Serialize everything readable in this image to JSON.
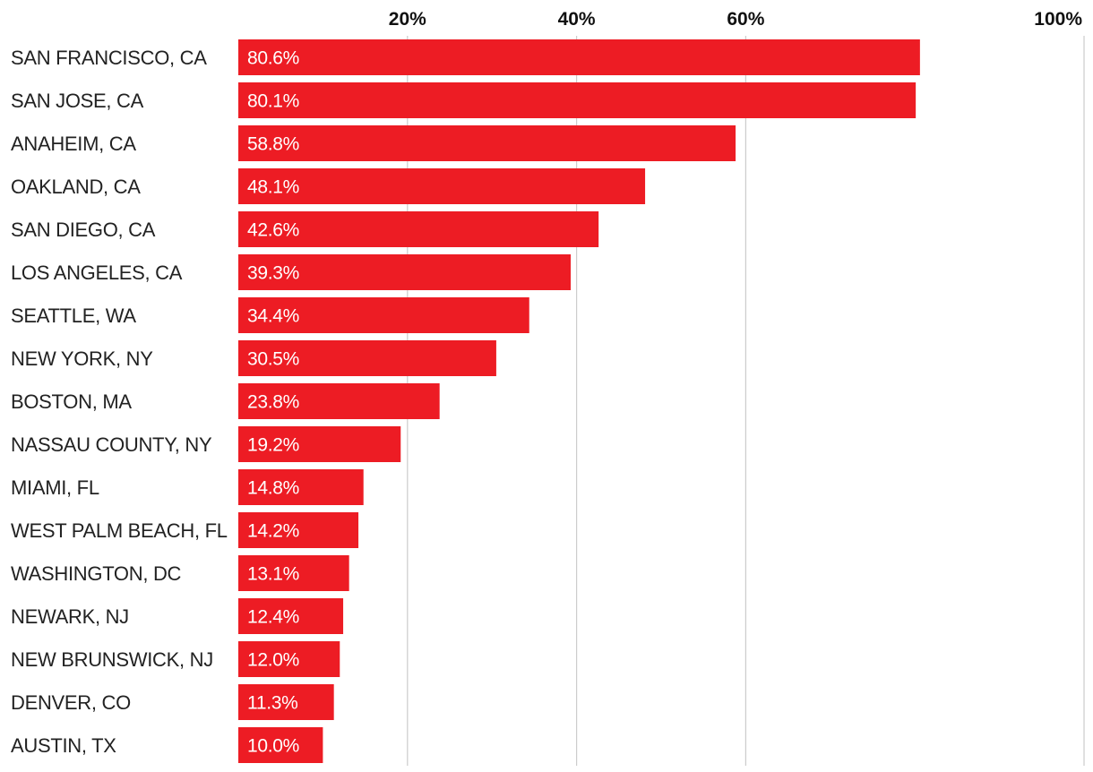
{
  "chart_data": {
    "type": "bar",
    "orientation": "horizontal",
    "title": "",
    "xlabel": "",
    "ylabel": "",
    "xlim": [
      0,
      100
    ],
    "ticks": [
      20,
      40,
      60,
      100
    ],
    "tick_labels": [
      "20%",
      "40%",
      "60%",
      "100%"
    ],
    "grid": true,
    "bar_color": "#ed1c24",
    "categories": [
      "SAN FRANCISCO, CA",
      "SAN JOSE, CA",
      "ANAHEIM, CA",
      "OAKLAND, CA",
      "SAN DIEGO, CA",
      "LOS ANGELES, CA",
      "SEATTLE, WA",
      "NEW YORK, NY",
      "BOSTON, MA",
      "NASSAU COUNTY, NY",
      "MIAMI, FL",
      "WEST PALM BEACH, FL",
      "WASHINGTON, DC",
      "NEWARK, NJ",
      "NEW BRUNSWICK, NJ",
      "DENVER, CO",
      "AUSTIN, TX"
    ],
    "values": [
      80.6,
      80.1,
      58.8,
      48.1,
      42.6,
      39.3,
      34.4,
      30.5,
      23.8,
      19.2,
      14.8,
      14.2,
      13.1,
      12.4,
      12.0,
      11.3,
      10.0
    ],
    "value_labels": [
      "80.6%",
      "80.1%",
      "58.8%",
      "48.1%",
      "42.6%",
      "39.3%",
      "34.4%",
      "30.5%",
      "23.8%",
      "19.2%",
      "14.8%",
      "14.2%",
      "13.1%",
      "12.4%",
      "12.0%",
      "11.3%",
      "10.0%"
    ]
  }
}
